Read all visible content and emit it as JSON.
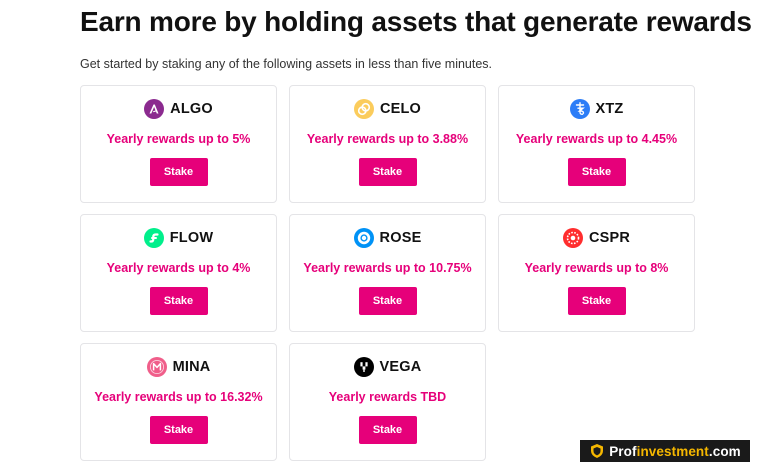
{
  "header": {
    "title": "Earn more by holding assets that generate rewards",
    "subtitle": "Get started by staking any of the following assets in less than five minutes."
  },
  "assets": [
    {
      "symbol": "ALGO",
      "reward": "Yearly rewards up to 5%",
      "button": "Stake",
      "icon": "algo-icon",
      "color": "#8b2a8f"
    },
    {
      "symbol": "CELO",
      "reward": "Yearly rewards up to 3.88%",
      "button": "Stake",
      "icon": "celo-icon",
      "color": "#fbcc5c"
    },
    {
      "symbol": "XTZ",
      "reward": "Yearly rewards up to 4.45%",
      "button": "Stake",
      "icon": "tezos-icon",
      "color": "#2c7df7"
    },
    {
      "symbol": "FLOW",
      "reward": "Yearly rewards up to 4%",
      "button": "Stake",
      "icon": "flow-icon",
      "color": "#00ef8b"
    },
    {
      "symbol": "ROSE",
      "reward": "Yearly rewards up to 10.75%",
      "button": "Stake",
      "icon": "oasis-rose-icon",
      "color": "#0092f6"
    },
    {
      "symbol": "CSPR",
      "reward": "Yearly rewards up to 8%",
      "button": "Stake",
      "icon": "casper-icon",
      "color": "#ff2d2e"
    },
    {
      "symbol": "MINA",
      "reward": "Yearly rewards up to 16.32%",
      "button": "Stake",
      "icon": "mina-icon",
      "color": "#f05e8a"
    },
    {
      "symbol": "VEGA",
      "reward": "Yearly rewards TBD",
      "button": "Stake",
      "icon": "vega-icon",
      "color": "#000000"
    }
  ],
  "watermark": {
    "prefix": "Prof",
    "highlight": "investment",
    "suffix": ".com",
    "icon": "shield-logo-icon"
  },
  "colors": {
    "accent": "#e6007a",
    "card_border": "#e4e4e7",
    "title": "#111111"
  }
}
